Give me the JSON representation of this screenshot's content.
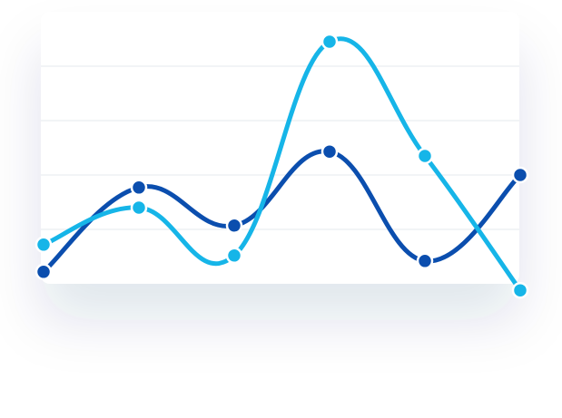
{
  "chart_data": {
    "type": "line",
    "categories": [
      null,
      null,
      null,
      null,
      null,
      null
    ],
    "series": [
      {
        "color": "#0b4eae",
        "values": [
          0.22,
          1.77,
          1.07,
          2.43,
          0.42,
          2.0
        ]
      },
      {
        "color": "#16b5e8",
        "values": [
          0.72,
          1.4,
          0.52,
          4.45,
          2.35,
          -0.12
        ]
      }
    ],
    "ylim": [
      0,
      5
    ],
    "yticks": [
      1,
      2,
      3,
      4
    ],
    "grid": true
  }
}
